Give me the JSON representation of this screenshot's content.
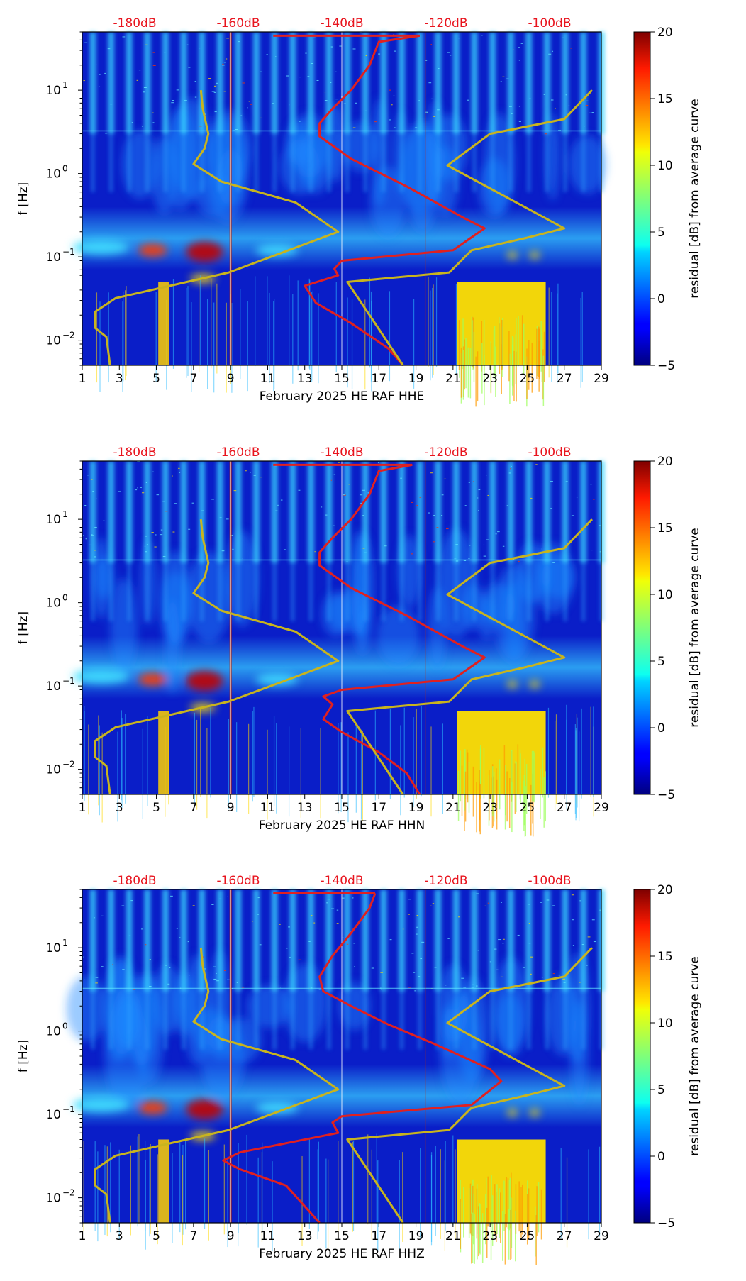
{
  "chart_data": [
    {
      "type": "heatmap",
      "channel": "HHE",
      "xlabel": "February 2025 HE RAF  HHE",
      "ylabel": "f [Hz]",
      "x_ticks": [
        "1",
        "3",
        "5",
        "7",
        "9",
        "11",
        "13",
        "15",
        "17",
        "19",
        "21",
        "23",
        "25",
        "27",
        "29"
      ],
      "xlim": [
        1,
        29
      ],
      "y_ticks": [
        {
          "base": "10",
          "exp": "1",
          "value": 10
        },
        {
          "base": "10",
          "exp": "0",
          "value": 1
        },
        {
          "base": "10",
          "exp": "−1",
          "value": 0.1
        },
        {
          "base": "10",
          "exp": "−2",
          "value": 0.01
        }
      ],
      "ylim": [
        0.005,
        50
      ],
      "yscale": "log",
      "db_ticks": [
        "-180dB",
        "-160dB",
        "-140dB",
        "-120dB",
        "-100dB"
      ],
      "colorbar": {
        "label": "residual [dB] from average curve",
        "ticks": [
          "−5",
          "0",
          "5",
          "10",
          "15",
          "20"
        ],
        "range": [
          -5,
          20
        ]
      },
      "series": [
        {
          "name": "yellow_low",
          "color": "#c8b41e",
          "points": [
            [
              7.4,
              10
            ],
            [
              7.5,
              6
            ],
            [
              7.8,
              3
            ],
            [
              7.6,
              2.0
            ],
            [
              7.0,
              1.3
            ],
            [
              8.5,
              0.8
            ],
            [
              12.5,
              0.45
            ],
            [
              14.8,
              0.2
            ],
            [
              8.9,
              0.065
            ],
            [
              2.8,
              0.032
            ],
            [
              1.7,
              0.022
            ],
            [
              1.7,
              0.014
            ],
            [
              2.3,
              0.011
            ],
            [
              2.5,
              0.005
            ]
          ]
        },
        {
          "name": "red_mean",
          "color": "#e02020",
          "points": [
            [
              19.2,
              45
            ],
            [
              17.0,
              38
            ],
            [
              16.5,
              20
            ],
            [
              15.5,
              10
            ],
            [
              14.5,
              6
            ],
            [
              13.8,
              4
            ],
            [
              13.8,
              2.8
            ],
            [
              15.5,
              1.5
            ],
            [
              18.5,
              0.7
            ],
            [
              21.5,
              0.3
            ],
            [
              22.7,
              0.22
            ],
            [
              21.0,
              0.12
            ],
            [
              15.0,
              0.09
            ],
            [
              14.6,
              0.072
            ],
            [
              14.8,
              0.06
            ],
            [
              13.0,
              0.045
            ],
            [
              13.6,
              0.028
            ],
            [
              15.5,
              0.016
            ],
            [
              17.5,
              0.008
            ],
            [
              18.3,
              0.005
            ]
          ]
        },
        {
          "name": "yellow_high",
          "color": "#c8b41e",
          "points": [
            [
              28.5,
              10
            ],
            [
              27.0,
              4.5
            ],
            [
              23.0,
              3.0
            ],
            [
              20.7,
              1.25
            ],
            [
              27.0,
              0.22
            ],
            [
              25.0,
              0.17
            ],
            [
              22.0,
              0.12
            ],
            [
              20.8,
              0.065
            ],
            [
              15.3,
              0.05
            ],
            [
              16.5,
              0.02
            ],
            [
              18.3,
              0.005
            ]
          ]
        }
      ]
    },
    {
      "type": "heatmap",
      "channel": "HHN",
      "xlabel": "February 2025 HE RAF  HHN",
      "ylabel": "f [Hz]",
      "x_ticks": [
        "1",
        "3",
        "5",
        "7",
        "9",
        "11",
        "13",
        "15",
        "17",
        "19",
        "21",
        "23",
        "25",
        "27",
        "29"
      ],
      "xlim": [
        1,
        29
      ],
      "y_ticks": [
        {
          "base": "10",
          "exp": "1",
          "value": 10
        },
        {
          "base": "10",
          "exp": "0",
          "value": 1
        },
        {
          "base": "10",
          "exp": "−1",
          "value": 0.1
        },
        {
          "base": "10",
          "exp": "−2",
          "value": 0.01
        }
      ],
      "ylim": [
        0.005,
        50
      ],
      "yscale": "log",
      "db_ticks": [
        "-180dB",
        "-160dB",
        "-140dB",
        "-120dB",
        "-100dB"
      ],
      "colorbar": {
        "label": "residual [dB] from average curve",
        "ticks": [
          "−5",
          "0",
          "5",
          "10",
          "15",
          "20"
        ],
        "range": [
          -5,
          20
        ]
      },
      "series": [
        {
          "name": "yellow_low",
          "color": "#c8b41e",
          "points": [
            [
              7.4,
              10
            ],
            [
              7.5,
              6
            ],
            [
              7.8,
              3
            ],
            [
              7.6,
              2.0
            ],
            [
              7.0,
              1.3
            ],
            [
              8.5,
              0.8
            ],
            [
              12.5,
              0.45
            ],
            [
              14.8,
              0.2
            ],
            [
              8.9,
              0.065
            ],
            [
              2.8,
              0.032
            ],
            [
              1.7,
              0.022
            ],
            [
              1.7,
              0.014
            ],
            [
              2.3,
              0.011
            ],
            [
              2.5,
              0.005
            ]
          ]
        },
        {
          "name": "red_mean",
          "color": "#e02020",
          "points": [
            [
              18.8,
              45
            ],
            [
              17.0,
              38
            ],
            [
              16.5,
              20
            ],
            [
              15.5,
              10
            ],
            [
              14.5,
              6
            ],
            [
              13.8,
              4
            ],
            [
              13.8,
              2.8
            ],
            [
              15.5,
              1.5
            ],
            [
              18.5,
              0.7
            ],
            [
              21.5,
              0.3
            ],
            [
              22.7,
              0.22
            ],
            [
              21.0,
              0.12
            ],
            [
              15.0,
              0.09
            ],
            [
              14.0,
              0.075
            ],
            [
              14.5,
              0.06
            ],
            [
              14.0,
              0.04
            ],
            [
              15.0,
              0.028
            ],
            [
              17.0,
              0.016
            ],
            [
              18.5,
              0.009
            ],
            [
              19.2,
              0.005
            ]
          ]
        },
        {
          "name": "yellow_high",
          "color": "#c8b41e",
          "points": [
            [
              28.5,
              10
            ],
            [
              27.0,
              4.5
            ],
            [
              23.0,
              3.0
            ],
            [
              20.7,
              1.25
            ],
            [
              27.0,
              0.22
            ],
            [
              25.0,
              0.17
            ],
            [
              22.0,
              0.12
            ],
            [
              20.8,
              0.065
            ],
            [
              15.3,
              0.05
            ],
            [
              16.5,
              0.02
            ],
            [
              18.3,
              0.005
            ]
          ]
        }
      ]
    },
    {
      "type": "heatmap",
      "channel": "HHZ",
      "xlabel": "February 2025 HE RAF  HHZ",
      "ylabel": "f [Hz]",
      "x_ticks": [
        "1",
        "3",
        "5",
        "7",
        "9",
        "11",
        "13",
        "15",
        "17",
        "19",
        "21",
        "23",
        "25",
        "27",
        "29"
      ],
      "xlim": [
        1,
        29
      ],
      "y_ticks": [
        {
          "base": "10",
          "exp": "1",
          "value": 10
        },
        {
          "base": "10",
          "exp": "0",
          "value": 1
        },
        {
          "base": "10",
          "exp": "−1",
          "value": 0.1
        },
        {
          "base": "10",
          "exp": "−2",
          "value": 0.01
        }
      ],
      "ylim": [
        0.005,
        50
      ],
      "yscale": "log",
      "db_ticks": [
        "-180dB",
        "-160dB",
        "-140dB",
        "-120dB",
        "-100dB"
      ],
      "colorbar": {
        "label": "residual [dB] from average curve",
        "ticks": [
          "−5",
          "0",
          "5",
          "10",
          "15",
          "20"
        ],
        "range": [
          -5,
          20
        ]
      },
      "series": [
        {
          "name": "yellow_low",
          "color": "#c8b41e",
          "points": [
            [
              7.4,
              10
            ],
            [
              7.5,
              6
            ],
            [
              7.8,
              3
            ],
            [
              7.6,
              2.0
            ],
            [
              7.0,
              1.3
            ],
            [
              8.5,
              0.8
            ],
            [
              12.5,
              0.45
            ],
            [
              14.8,
              0.2
            ],
            [
              8.9,
              0.065
            ],
            [
              2.8,
              0.032
            ],
            [
              1.7,
              0.022
            ],
            [
              1.7,
              0.014
            ],
            [
              2.3,
              0.011
            ],
            [
              2.5,
              0.005
            ]
          ]
        },
        {
          "name": "red_mean",
          "color": "#e02020",
          "points": [
            [
              16.8,
              45
            ],
            [
              16.5,
              30
            ],
            [
              15.5,
              15
            ],
            [
              14.5,
              8
            ],
            [
              13.8,
              4.5
            ],
            [
              14.0,
              3.0
            ],
            [
              15.5,
              2.0
            ],
            [
              17.5,
              1.2
            ],
            [
              20.0,
              0.7
            ],
            [
              23.0,
              0.35
            ],
            [
              23.6,
              0.25
            ],
            [
              22.0,
              0.13
            ],
            [
              15.0,
              0.095
            ],
            [
              14.5,
              0.08
            ],
            [
              14.8,
              0.06
            ],
            [
              9.5,
              0.035
            ],
            [
              8.6,
              0.028
            ],
            [
              9.5,
              0.022
            ],
            [
              12.0,
              0.014
            ],
            [
              13.8,
              0.005
            ]
          ]
        },
        {
          "name": "yellow_high",
          "color": "#c8b41e",
          "points": [
            [
              28.5,
              10
            ],
            [
              27.0,
              4.5
            ],
            [
              23.0,
              3.0
            ],
            [
              20.7,
              1.25
            ],
            [
              27.0,
              0.22
            ],
            [
              25.0,
              0.17
            ],
            [
              22.0,
              0.12
            ],
            [
              20.8,
              0.065
            ],
            [
              15.3,
              0.05
            ],
            [
              16.5,
              0.02
            ],
            [
              18.3,
              0.005
            ]
          ]
        }
      ]
    }
  ]
}
